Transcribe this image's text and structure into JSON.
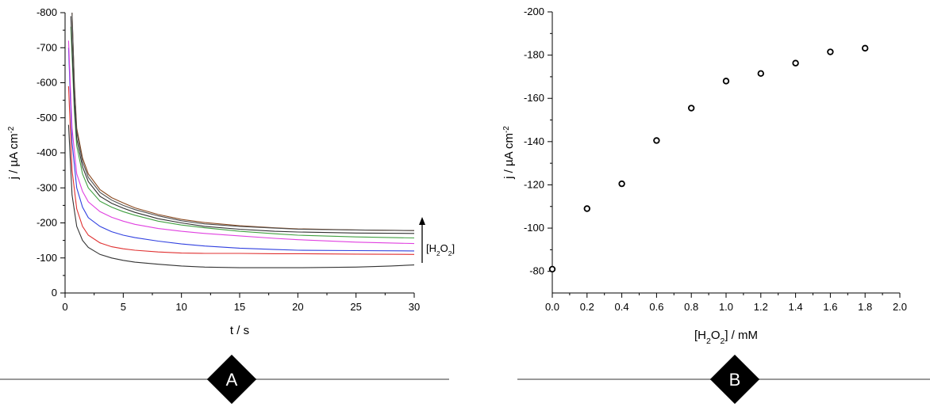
{
  "chart_data": [
    {
      "panel": "A",
      "type": "line",
      "xlabel": "t / s",
      "ylabel": "j / µA cm",
      "ylabel_sup": "-2",
      "xlim": [
        0,
        30
      ],
      "ylim": [
        0,
        -800
      ],
      "xticks": [
        0,
        5,
        10,
        15,
        20,
        25,
        30
      ],
      "yticks": [
        0,
        -100,
        -200,
        -300,
        -400,
        -500,
        -600,
        -700,
        -800
      ],
      "annotation": {
        "text": "[H2O2]",
        "arrow": "up"
      },
      "series": [
        {
          "color": "#333333",
          "x": [
            0.3,
            0.6,
            1,
            1.5,
            2,
            3,
            4,
            5,
            6,
            8,
            10,
            12,
            15,
            18,
            20,
            25,
            28,
            30
          ],
          "y": [
            -480,
            -280,
            -190,
            -150,
            -130,
            -110,
            -100,
            -93,
            -88,
            -82,
            -77,
            -74,
            -72,
            -72,
            -72,
            -74,
            -77,
            -80
          ]
        },
        {
          "color": "#e03030",
          "x": [
            0.3,
            0.6,
            1,
            1.5,
            2,
            3,
            4,
            5,
            6,
            8,
            10,
            12,
            15,
            18,
            20,
            25,
            30
          ],
          "y": [
            -590,
            -350,
            -240,
            -190,
            -165,
            -143,
            -132,
            -126,
            -122,
            -117,
            -114,
            -113,
            -113,
            -112,
            -112,
            -111,
            -110
          ]
        },
        {
          "color": "#3040e0",
          "x": [
            0.3,
            0.6,
            1,
            1.5,
            2,
            3,
            4,
            5,
            6,
            8,
            10,
            12,
            15,
            18,
            20,
            25,
            30
          ],
          "y": [
            -700,
            -430,
            -300,
            -245,
            -215,
            -190,
            -175,
            -165,
            -158,
            -148,
            -140,
            -134,
            -128,
            -124,
            -122,
            -121,
            -120
          ]
        },
        {
          "color": "#e040e0",
          "x": [
            0.3,
            0.6,
            1,
            1.5,
            2,
            3,
            4,
            5,
            6,
            8,
            10,
            12,
            15,
            18,
            20,
            25,
            30
          ],
          "y": [
            -720,
            -470,
            -340,
            -290,
            -260,
            -232,
            -216,
            -205,
            -196,
            -184,
            -176,
            -170,
            -163,
            -156,
            -152,
            -145,
            -141
          ]
        },
        {
          "color": "#40a040",
          "x": [
            0.5,
            0.8,
            1,
            1.5,
            2,
            3,
            4,
            5,
            6,
            8,
            10,
            12,
            15,
            18,
            20,
            25,
            30
          ],
          "y": [
            -760,
            -520,
            -420,
            -340,
            -300,
            -262,
            -245,
            -232,
            -222,
            -205,
            -194,
            -186,
            -176,
            -169,
            -165,
            -160,
            -157
          ]
        },
        {
          "color": "#303030",
          "x": [
            0.5,
            0.8,
            1,
            1.5,
            2,
            3,
            4,
            5,
            6,
            8,
            10,
            12,
            15,
            18,
            20,
            25,
            30
          ],
          "y": [
            -790,
            -540,
            -440,
            -360,
            -318,
            -276,
            -256,
            -242,
            -230,
            -212,
            -200,
            -190,
            -182,
            -176,
            -174,
            -171,
            -170
          ]
        },
        {
          "color": "#8a4a20",
          "x": [
            0.6,
            0.8,
            1,
            1.5,
            2,
            3,
            4,
            5,
            6,
            8,
            10,
            12,
            15,
            18,
            20,
            25,
            30
          ],
          "y": [
            -800,
            -600,
            -470,
            -385,
            -340,
            -295,
            -272,
            -257,
            -243,
            -224,
            -210,
            -201,
            -192,
            -186,
            -183,
            -180,
            -178
          ]
        },
        {
          "color": "#505050",
          "x": [
            0.6,
            0.8,
            1,
            1.5,
            2,
            3,
            4,
            5,
            6,
            8,
            10,
            12,
            15,
            18,
            20,
            25,
            30
          ],
          "y": [
            -800,
            -590,
            -460,
            -375,
            -330,
            -287,
            -265,
            -250,
            -238,
            -220,
            -206,
            -197,
            -190,
            -185,
            -182,
            -180,
            -178
          ]
        }
      ]
    },
    {
      "panel": "B",
      "type": "scatter",
      "xlabel": "[H2O2] / mM",
      "ylabel": "j / µA cm",
      "ylabel_sup": "-2",
      "xlim": [
        0,
        2.0
      ],
      "ylim": [
        -70,
        -200
      ],
      "xticks": [
        "0.0",
        "0.2",
        "0.4",
        "0.6",
        "0.8",
        "1.0",
        "1.2",
        "1.4",
        "1.6",
        "1.8",
        "2.0"
      ],
      "yticks": [
        -80,
        -100,
        -120,
        -140,
        -160,
        -180,
        -200
      ],
      "x": [
        0.0,
        0.2,
        0.4,
        0.6,
        0.8,
        1.0,
        1.2,
        1.4,
        1.6,
        1.8
      ],
      "y": [
        -81,
        -109,
        -120.5,
        -140.5,
        -155.5,
        -168,
        -171.5,
        -176.3,
        -181.5,
        -183.2
      ]
    }
  ],
  "badges": [
    {
      "label": "A"
    },
    {
      "label": "B"
    }
  ]
}
